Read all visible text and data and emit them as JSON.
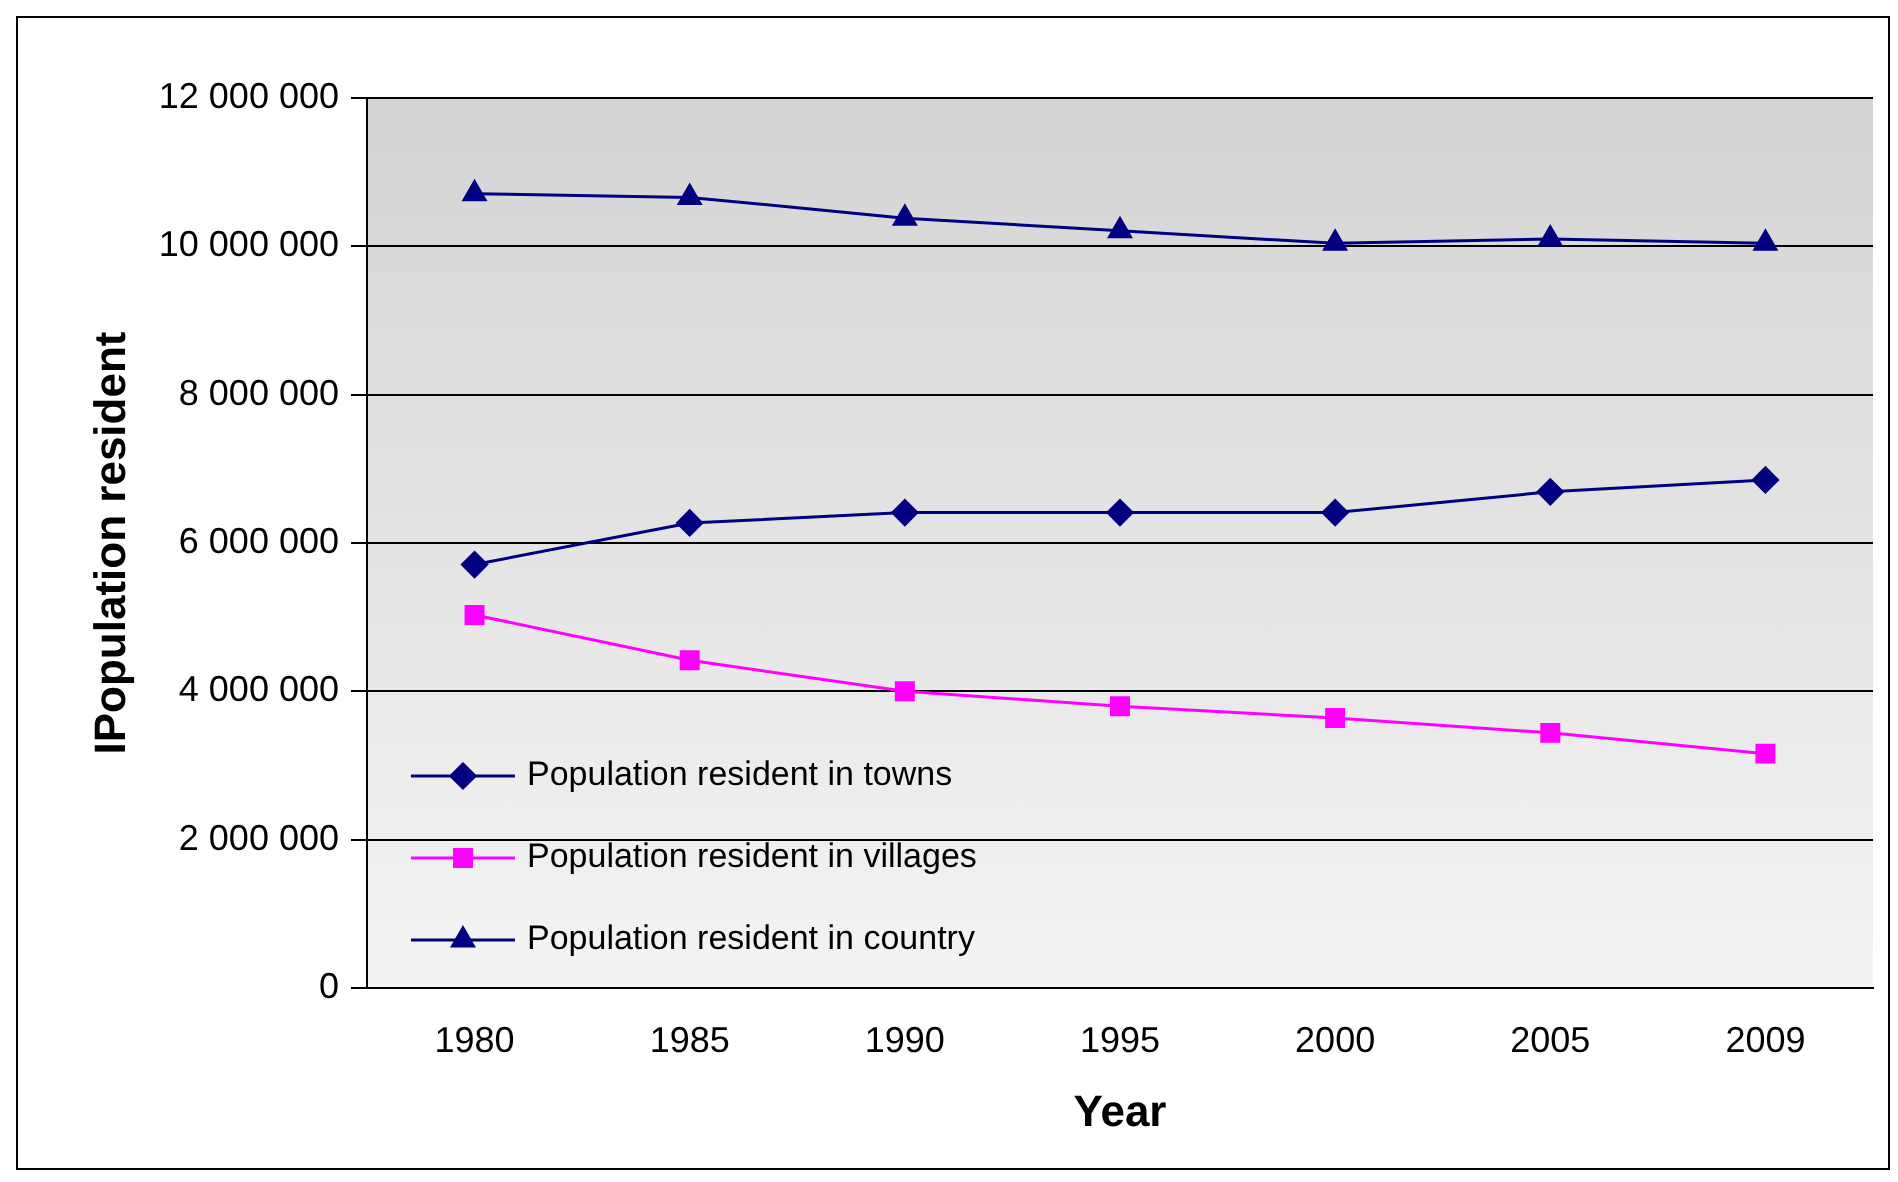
{
  "chart_data": {
    "type": "line",
    "xlabel": "Year",
    "ylabel": "IPopulation resident",
    "categories": [
      "1980",
      "1985",
      "1990",
      "1995",
      "2000",
      "2005",
      "2009"
    ],
    "series": [
      {
        "name": "Population resident in towns",
        "color": "#000080",
        "marker": "diamond",
        "values": [
          5710000,
          6270000,
          6410000,
          6410000,
          6410000,
          6690000,
          6850000
        ]
      },
      {
        "name": "Population resident in villages",
        "color": "#ff00ff",
        "marker": "square",
        "values": [
          5030000,
          4420000,
          4000000,
          3800000,
          3640000,
          3440000,
          3160000
        ]
      },
      {
        "name": "Population resident in country",
        "color": "#000080",
        "marker": "triangle",
        "values": [
          10710000,
          10660000,
          10380000,
          10210000,
          10040000,
          10100000,
          10040000
        ]
      }
    ],
    "ylim": [
      0,
      12000000
    ],
    "yticks": [
      {
        "value": 0,
        "label": "0"
      },
      {
        "value": 2000000,
        "label": "2 000 000"
      },
      {
        "value": 4000000,
        "label": "4 000 000"
      },
      {
        "value": 6000000,
        "label": "6 000 000"
      },
      {
        "value": 8000000,
        "label": "8 000 000"
      },
      {
        "value": 10000000,
        "label": "10 000 000"
      },
      {
        "value": 12000000,
        "label": "12 000 000"
      }
    ],
    "grid": "y",
    "legend": "bottom left"
  }
}
